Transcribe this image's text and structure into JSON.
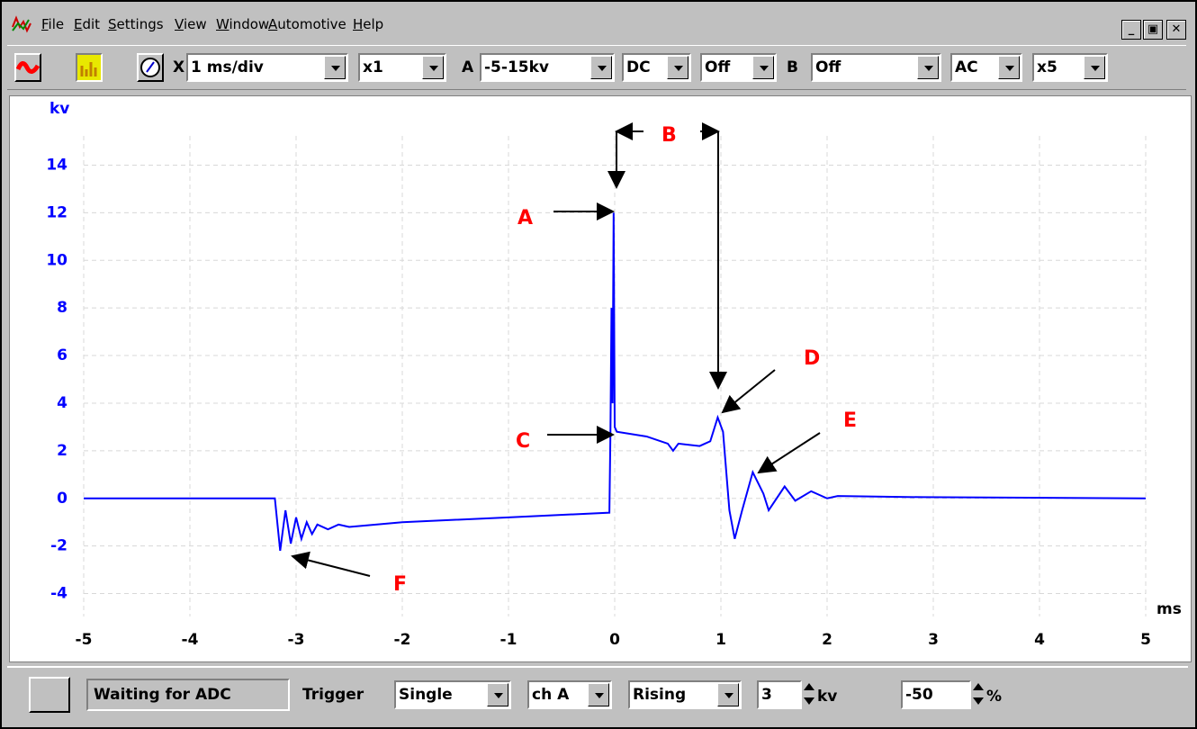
{
  "menu": [
    "File",
    "Edit",
    "Settings",
    "View",
    "Window",
    "Automotive",
    "Help"
  ],
  "toolbar": {
    "x_label": "X",
    "timebase": "1 ms/div",
    "x_zoom": "x1",
    "a_label": "A",
    "a_range": "-5-15kv",
    "a_coupling": "DC",
    "a_mode": "Off",
    "b_label": "B",
    "b_range": "Off",
    "b_coupling": "AC",
    "b_zoom": "x5"
  },
  "chart_data": {
    "type": "line",
    "xlabel": "ms",
    "ylabel": "kv",
    "x": [
      -5,
      -3.2,
      -3.15,
      -3.1,
      -3.05,
      -3.0,
      -2.95,
      -2.9,
      -2.85,
      -2.8,
      -2.7,
      -2.6,
      -2.5,
      -2.0,
      -1.0,
      -0.05,
      -0.04,
      -0.03,
      -0.02,
      -0.01,
      0,
      0.02,
      0.3,
      0.5,
      0.55,
      0.6,
      0.8,
      0.9,
      0.97,
      1.02,
      1.08,
      1.13,
      1.2,
      1.3,
      1.4,
      1.45,
      1.6,
      1.7,
      1.85,
      2.0,
      2.1,
      2.9,
      5
    ],
    "series": [
      {
        "color": "#0000ff",
        "values": [
          0,
          0,
          -2.2,
          -0.5,
          -1.9,
          -0.8,
          -1.7,
          -1.0,
          -1.5,
          -1.1,
          -1.3,
          -1.1,
          -1.2,
          -1.0,
          -0.8,
          -0.6,
          2.8,
          8,
          4,
          12,
          3,
          2.8,
          2.6,
          2.3,
          2.0,
          2.3,
          2.2,
          2.4,
          3.4,
          2.8,
          -0.5,
          -1.7,
          -0.5,
          1.1,
          0.2,
          -0.5,
          0.5,
          -0.1,
          0.3,
          0,
          0.1,
          0.05,
          0
        ]
      }
    ],
    "xlim": [
      -5,
      5
    ],
    "xticks": [
      -5,
      -4,
      -3,
      -2,
      -1,
      0,
      1,
      2,
      3,
      4,
      5
    ],
    "ylim": [
      -5,
      15
    ],
    "yticks": [
      -4,
      -2,
      0,
      2,
      4,
      6,
      8,
      10,
      12,
      14
    ],
    "grid": true,
    "annotations": [
      "A",
      "B",
      "C",
      "D",
      "E",
      "F"
    ]
  },
  "status": {
    "message": "Waiting for ADC",
    "trigger_label": "Trigger",
    "trigger_mode": "Single",
    "trigger_channel": "ch A",
    "trigger_edge": "Rising",
    "threshold": "3",
    "threshold_unit": "kv",
    "pre_trigger": "-50",
    "pre_trigger_unit": "%"
  }
}
